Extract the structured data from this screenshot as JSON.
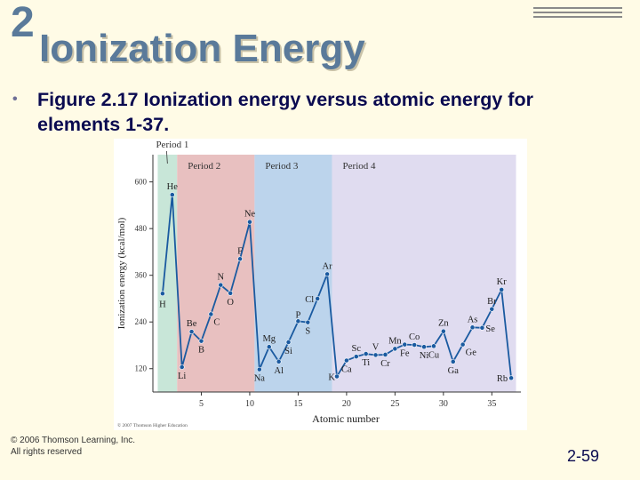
{
  "slide": {
    "number": "2",
    "title": "Ionization Energy"
  },
  "bullet": "Figure 2.17 Ionization energy versus atomic energy for elements 1-37.",
  "footer": {
    "copyright_line1": "© 2006 Thomson Learning, Inc.",
    "copyright_line2": "All rights reserved",
    "page": "2-59"
  },
  "colors": {
    "background": "#fffbe6",
    "title": "#5a7a9a",
    "period1": "#c8e6d8",
    "period2": "#e8c0c0",
    "period3": "#bcd4ec",
    "period4": "#e0dcf0",
    "line": "#1a5aa0"
  },
  "chart_data": {
    "type": "line",
    "title": "",
    "xlabel": "Atomic number",
    "ylabel": "Ionization energy (kcal/mol)",
    "xlim": [
      0,
      38
    ],
    "ylim": [
      60,
      670
    ],
    "xticks": [
      5,
      10,
      15,
      20,
      25,
      30,
      35
    ],
    "yticks": [
      120,
      240,
      360,
      480,
      600
    ],
    "periods": [
      {
        "label": "Period 1",
        "from": 0.5,
        "to": 2.5
      },
      {
        "label": "Period 2",
        "from": 2.5,
        "to": 10.5
      },
      {
        "label": "Period 3",
        "from": 10.5,
        "to": 18.5
      },
      {
        "label": "Period 4",
        "from": 18.5,
        "to": 37.5
      }
    ],
    "credit": "© 2007 Thomson Higher Education",
    "points": [
      {
        "z": 1,
        "symbol": "H",
        "value": 313
      },
      {
        "z": 2,
        "symbol": "He",
        "value": 567
      },
      {
        "z": 3,
        "symbol": "Li",
        "value": 124
      },
      {
        "z": 4,
        "symbol": "Be",
        "value": 215
      },
      {
        "z": 5,
        "symbol": "B",
        "value": 191
      },
      {
        "z": 6,
        "symbol": "C",
        "value": 260
      },
      {
        "z": 7,
        "symbol": "N",
        "value": 335
      },
      {
        "z": 8,
        "symbol": "O",
        "value": 314
      },
      {
        "z": 9,
        "symbol": "F",
        "value": 402
      },
      {
        "z": 10,
        "symbol": "Ne",
        "value": 497
      },
      {
        "z": 11,
        "symbol": "Na",
        "value": 118
      },
      {
        "z": 12,
        "symbol": "Mg",
        "value": 176
      },
      {
        "z": 13,
        "symbol": "Al",
        "value": 138
      },
      {
        "z": 14,
        "symbol": "Si",
        "value": 188
      },
      {
        "z": 15,
        "symbol": "P",
        "value": 242
      },
      {
        "z": 16,
        "symbol": "S",
        "value": 239
      },
      {
        "z": 17,
        "symbol": "Cl",
        "value": 300
      },
      {
        "z": 18,
        "symbol": "Ar",
        "value": 363
      },
      {
        "z": 19,
        "symbol": "K",
        "value": 100
      },
      {
        "z": 20,
        "symbol": "Ca",
        "value": 141
      },
      {
        "z": 21,
        "symbol": "Sc",
        "value": 151
      },
      {
        "z": 22,
        "symbol": "Ti",
        "value": 158
      },
      {
        "z": 23,
        "symbol": "V",
        "value": 155
      },
      {
        "z": 24,
        "symbol": "Cr",
        "value": 156
      },
      {
        "z": 25,
        "symbol": "Mn",
        "value": 171
      },
      {
        "z": 26,
        "symbol": "Fe",
        "value": 182
      },
      {
        "z": 27,
        "symbol": "Co",
        "value": 181
      },
      {
        "z": 28,
        "symbol": "Ni",
        "value": 176
      },
      {
        "z": 29,
        "symbol": "Cu",
        "value": 178
      },
      {
        "z": 30,
        "symbol": "Zn",
        "value": 216
      },
      {
        "z": 31,
        "symbol": "Ga",
        "value": 138
      },
      {
        "z": 32,
        "symbol": "Ge",
        "value": 182
      },
      {
        "z": 33,
        "symbol": "As",
        "value": 226
      },
      {
        "z": 34,
        "symbol": "Se",
        "value": 225
      },
      {
        "z": 35,
        "symbol": "Br",
        "value": 273
      },
      {
        "z": 36,
        "symbol": "Kr",
        "value": 323
      },
      {
        "z": 37,
        "symbol": "Rb",
        "value": 96
      }
    ]
  }
}
